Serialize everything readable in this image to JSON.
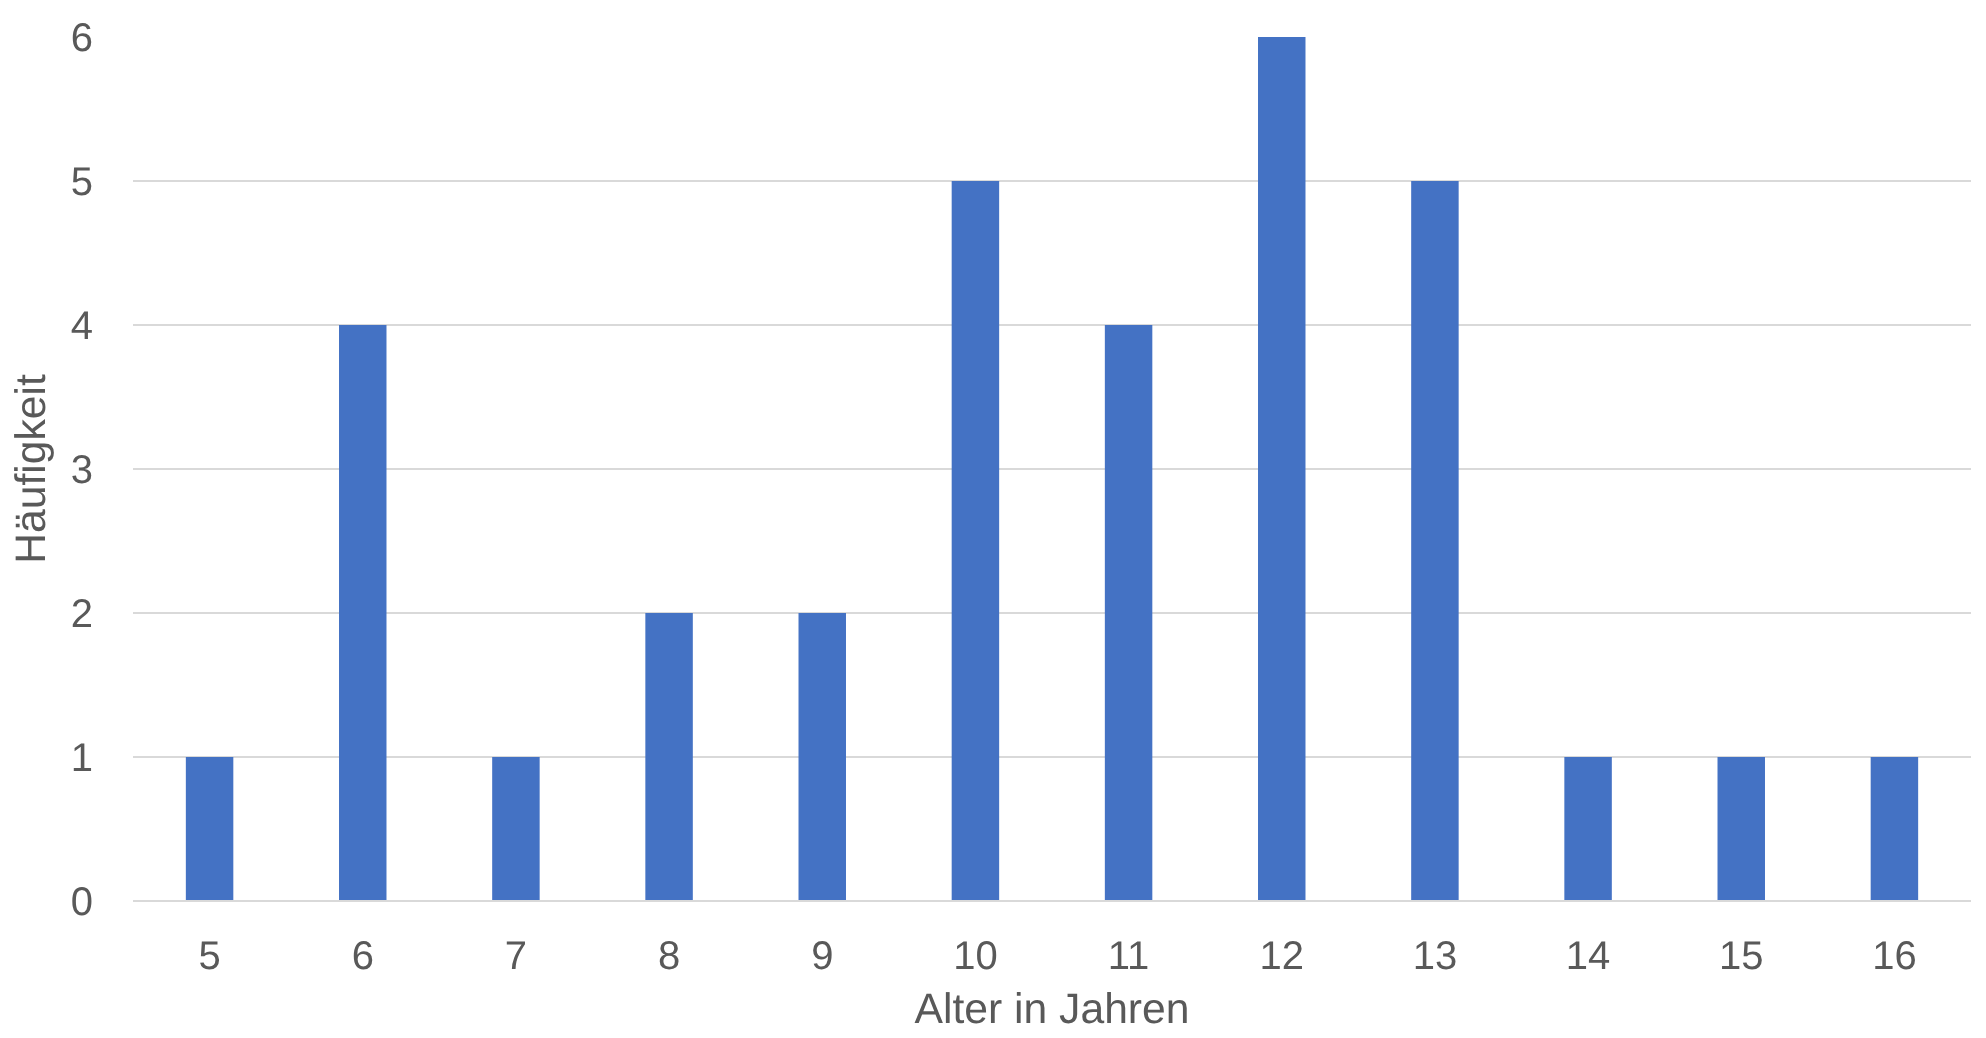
{
  "chart_data": {
    "type": "bar",
    "xlabel": "Alter in Jahren",
    "ylabel": "Häufigkeit",
    "categories": [
      "5",
      "6",
      "7",
      "8",
      "9",
      "10",
      "11",
      "12",
      "13",
      "14",
      "15",
      "16"
    ],
    "values": [
      1,
      4,
      1,
      2,
      2,
      5,
      4,
      6,
      5,
      1,
      1,
      1
    ],
    "color": "#4472c4",
    "ylim": [
      0,
      6
    ],
    "yticks": [
      0,
      1,
      2,
      3,
      4,
      5,
      6
    ],
    "grid": "y",
    "legend": false
  }
}
